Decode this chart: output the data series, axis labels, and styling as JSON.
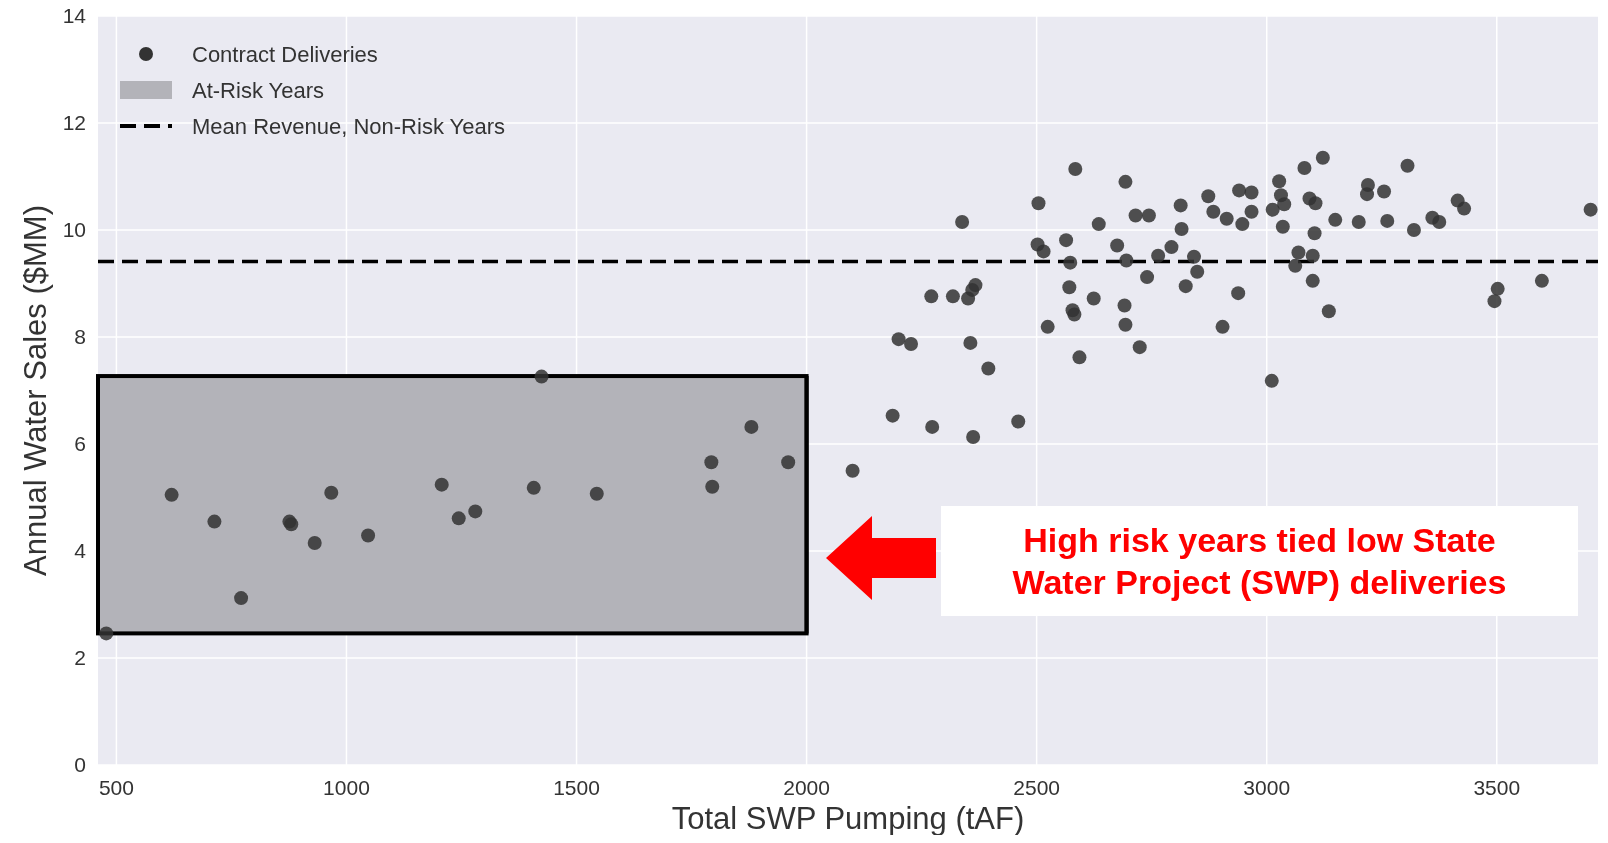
{
  "chart_data": {
    "type": "scatter",
    "xlabel": "Total SWP Pumping (tAF)",
    "ylabel": "Annual Water Sales ($MM)",
    "xlim": [
      460,
      3720
    ],
    "xticks": [
      500,
      1000,
      1500,
      2000,
      2500,
      3000,
      3500
    ],
    "ylim": [
      0,
      14
    ],
    "yticks": [
      0,
      2,
      4,
      6,
      8,
      10,
      12,
      14
    ],
    "grid": true,
    "legend": "top left",
    "marker": "circle",
    "series": [
      {
        "name": "Contract Deliveries",
        "color": "#333333",
        "x": [
          478,
          620,
          713,
          771,
          876,
          880,
          931,
          967,
          1047,
          1207,
          1244,
          1280,
          1407,
          1424,
          1544,
          1793,
          1795,
          1880,
          1960,
          2100,
          2187,
          2200,
          2227,
          2271,
          2273,
          2318,
          2338,
          2351,
          2360,
          2367,
          2356,
          2362,
          2395,
          2460,
          2504,
          2502,
          2515,
          2524,
          2564,
          2573,
          2571,
          2584,
          2578,
          2582,
          2593,
          2624,
          2635,
          2675,
          2693,
          2691,
          2693,
          2695,
          2715,
          2724,
          2744,
          2740,
          2764,
          2793,
          2813,
          2815,
          2824,
          2842,
          2849,
          2873,
          2884,
          2913,
          2940,
          2967,
          2967,
          2947,
          3027,
          3031,
          3013,
          3038,
          3035,
          3082,
          3122,
          3093,
          3106,
          3149,
          3104,
          3069,
          3062,
          3100,
          3100,
          2938,
          2904,
          3011,
          3135,
          3200,
          3220,
          3218,
          3255,
          3262,
          3306,
          3320,
          3360,
          3375,
          3415,
          3429,
          3502,
          3495,
          3598,
          3704
        ],
        "values": [
          2.46,
          5.05,
          4.55,
          3.12,
          4.55,
          4.5,
          4.15,
          5.09,
          4.29,
          5.24,
          4.61,
          4.74,
          5.18,
          7.26,
          5.07,
          5.66,
          5.2,
          6.32,
          5.66,
          5.5,
          6.53,
          7.96,
          7.87,
          8.76,
          6.32,
          8.76,
          10.15,
          8.72,
          8.88,
          8.97,
          7.89,
          6.13,
          7.41,
          6.42,
          10.5,
          9.73,
          9.6,
          8.19,
          9.81,
          9.39,
          8.93,
          11.14,
          8.5,
          8.42,
          7.62,
          8.72,
          10.11,
          9.71,
          10.9,
          8.59,
          8.23,
          9.43,
          10.27,
          7.81,
          10.27,
          9.12,
          9.52,
          9.68,
          10.46,
          10.02,
          8.95,
          9.5,
          9.22,
          10.63,
          10.34,
          10.21,
          10.74,
          10.7,
          10.34,
          10.11,
          10.91,
          10.65,
          10.38,
          10.48,
          10.06,
          11.16,
          11.35,
          10.59,
          10.5,
          10.19,
          9.94,
          9.58,
          9.33,
          9.52,
          9.05,
          8.82,
          8.19,
          7.18,
          8.48,
          10.15,
          10.84,
          10.67,
          10.72,
          10.17,
          11.2,
          10.0,
          10.23,
          10.15,
          10.55,
          10.4,
          8.9,
          8.67,
          9.05,
          10.38
        ]
      }
    ],
    "bands": [
      {
        "axis": "y",
        "from": 2.46,
        "to": 7.27,
        "label": "At-Risk Years",
        "color": "#b3b3b9"
      }
    ],
    "ref_lines": [
      {
        "axis": "y",
        "value": 9.41,
        "label": "Mean Revenue, Non-Risk Years",
        "color": "#000000",
        "line_style": "dashed"
      },
      {
        "axis": "x",
        "value": 2000,
        "color": "#000000",
        "line_style": "solid"
      }
    ],
    "annotations": [
      "High risk years tied low State Water Project (SWP) deliveries"
    ]
  }
}
